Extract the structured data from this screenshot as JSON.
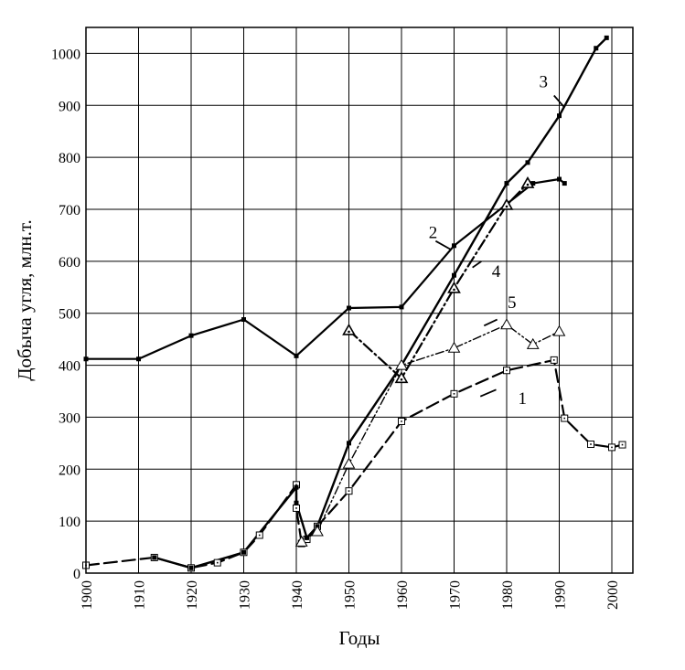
{
  "chart_data": {
    "type": "line",
    "title": "",
    "xlabel": "Годы",
    "ylabel": "Добыча угля, млн.т.",
    "xlim": [
      1900,
      2004
    ],
    "ylim": [
      0,
      1050
    ],
    "grid": true,
    "x_ticks": [
      "1900",
      "1910",
      "1920",
      "1930",
      "1940",
      "1950",
      "1960",
      "1970",
      "1980",
      "1990",
      "2000"
    ],
    "y_ticks": [
      "0",
      "100",
      "200",
      "300",
      "400",
      "500",
      "600",
      "700",
      "800",
      "900",
      "1000"
    ],
    "series": [
      {
        "name": "1",
        "style": "long-dash",
        "marker": "open-square",
        "x": [
          1900,
          1913,
          1920,
          1925,
          1930,
          1933,
          1940,
          1940,
          1941,
          1942,
          1944,
          1950,
          1960,
          1970,
          1980,
          1989,
          1991,
          1996,
          2000,
          2002
        ],
        "y": [
          15,
          30,
          10,
          20,
          40,
          73,
          170,
          125,
          57,
          65,
          90,
          158,
          292,
          345,
          390,
          410,
          298,
          248,
          242,
          247
        ]
      },
      {
        "name": "2",
        "style": "solid",
        "marker": "filled-square",
        "x": [
          1900,
          1910,
          1920,
          1930,
          1940,
          1950,
          1960,
          1970,
          1980,
          1985,
          1990,
          1991
        ],
        "y": [
          412,
          412,
          457,
          488,
          418,
          510,
          512,
          630,
          710,
          750,
          758,
          750
        ]
      },
      {
        "name": "3",
        "style": "solid",
        "marker": "filled-square",
        "x": [
          1913,
          1920,
          1930,
          1940,
          1940,
          1942,
          1944,
          1950,
          1960,
          1970,
          1980,
          1984,
          1990,
          1997,
          1999
        ],
        "y": [
          30,
          10,
          40,
          165,
          135,
          68,
          90,
          250,
          400,
          573,
          750,
          790,
          880,
          1010,
          1030
        ]
      },
      {
        "name": "4",
        "style": "dash-dot",
        "marker": "open-triangle-dot",
        "x": [
          1950,
          1960,
          1970,
          1980,
          1984
        ],
        "y": [
          467,
          375,
          548,
          708,
          750
        ]
      },
      {
        "name": "5",
        "style": "dash-dot-dot",
        "marker": "open-triangle",
        "x": [
          1941,
          1944,
          1950,
          1960,
          1970,
          1980,
          1985,
          1990
        ],
        "y": [
          60,
          80,
          210,
          400,
          433,
          478,
          440,
          465
        ]
      }
    ],
    "annotations": [
      {
        "text": "1",
        "series": "1"
      },
      {
        "text": "2",
        "series": "2"
      },
      {
        "text": "3",
        "series": "3"
      },
      {
        "text": "4",
        "series": "4"
      },
      {
        "text": "5",
        "series": "5"
      }
    ]
  }
}
